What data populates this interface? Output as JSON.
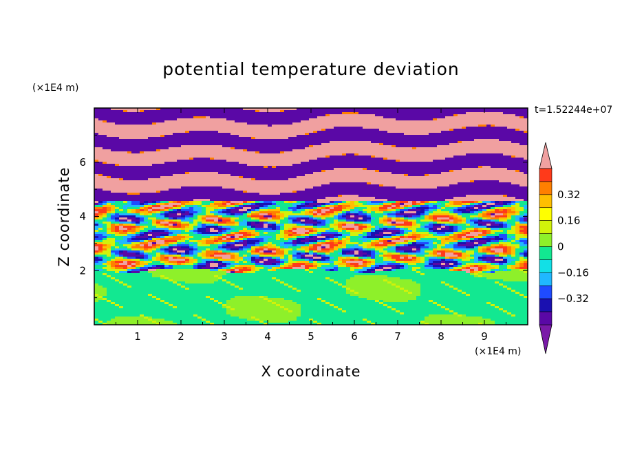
{
  "chart_data": {
    "type": "heatmap",
    "title": "potential temperature deviation",
    "xlabel": "X coordinate",
    "ylabel": "Z coordinate",
    "x_unit": "(×1E4 m)",
    "y_unit": "(×1E4 m)",
    "time_label": "t=1.52244e+07",
    "xlim": [
      0,
      10
    ],
    "ylim": [
      0,
      8
    ],
    "x_ticks": [
      1,
      2,
      3,
      4,
      5,
      6,
      7,
      8,
      9
    ],
    "y_ticks": [
      2,
      4,
      6
    ],
    "layer_boundaries": {
      "lower_uniform_top": 2.0,
      "mixing_band": [
        2.0,
        4.6
      ],
      "upper_layered_bottom": 4.6
    },
    "colorbar": {
      "levels": [
        -0.48,
        -0.4,
        -0.32,
        -0.24,
        -0.16,
        -0.08,
        0.0,
        0.08,
        0.16,
        0.24,
        0.32,
        0.4,
        0.48
      ],
      "labels": [
        "0.32",
        "0.16",
        "0",
        "−0.16",
        "−0.32"
      ],
      "label_values": [
        0.32,
        0.16,
        0,
        -0.16,
        -0.32
      ],
      "colors": [
        "#7a1aa8",
        "#5a08a6",
        "#1a10b0",
        "#1f4bff",
        "#20b8ff",
        "#12e0e6",
        "#12e891",
        "#8ef02a",
        "#d2f20a",
        "#ffff00",
        "#ffbf00",
        "#ff7f00",
        "#ff3a1a",
        "#f0a0a0"
      ],
      "extend": "both"
    }
  }
}
